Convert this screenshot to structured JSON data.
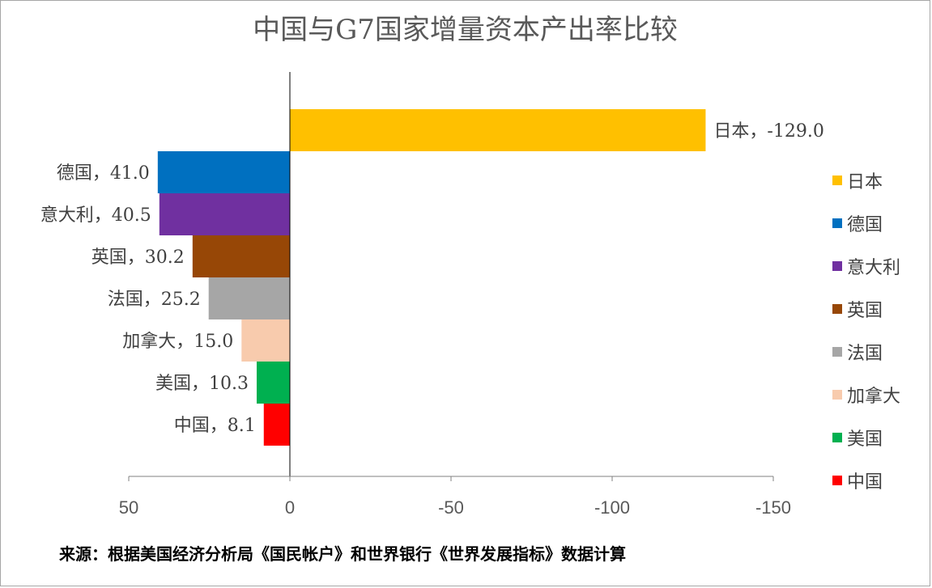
{
  "chart_data": {
    "type": "bar",
    "orientation": "horizontal",
    "title": "中国与G7国家增量资本产出率比较",
    "categories": [
      "日本",
      "德国",
      "意大利",
      "英国",
      "法国",
      "加拿大",
      "美国",
      "中国"
    ],
    "values": [
      -129.0,
      41.0,
      40.5,
      30.2,
      25.2,
      15.0,
      10.3,
      8.1
    ],
    "data_labels": [
      "日本，-129.0",
      "德国，41.0",
      "意大利，40.5",
      "英国，30.2",
      "法国，25.2",
      "加拿大，15.0",
      "美国，10.3",
      "中国，8.1"
    ],
    "colors": [
      "#ffc000",
      "#0070c0",
      "#7030a0",
      "#974706",
      "#a6a6a6",
      "#f8cbad",
      "#00b050",
      "#ff0000"
    ],
    "x_axis": {
      "reversed": true,
      "range": [
        50,
        -150
      ],
      "ticks": [
        50,
        0,
        -50,
        -100,
        -150
      ],
      "tick_labels": [
        "50",
        "0",
        "-50",
        "-100",
        "-150"
      ]
    },
    "xlabel": "",
    "ylabel": "",
    "grid": false,
    "legend_position": "right"
  },
  "source_note": "来源：根据美国经济分析局《国民帐户》和世界银行《世界发展指标》数据计算"
}
